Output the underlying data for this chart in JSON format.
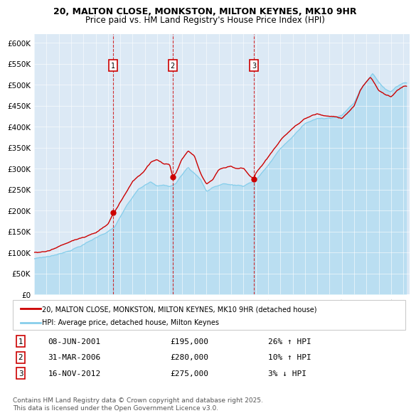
{
  "title1": "20, MALTON CLOSE, MONKSTON, MILTON KEYNES, MK10 9HR",
  "title2": "Price paid vs. HM Land Registry's House Price Index (HPI)",
  "ylabel_ticks": [
    "£0",
    "£50K",
    "£100K",
    "£150K",
    "£200K",
    "£250K",
    "£300K",
    "£350K",
    "£400K",
    "£450K",
    "£500K",
    "£550K",
    "£600K"
  ],
  "ylim": [
    0,
    620000
  ],
  "ytick_vals": [
    0,
    50000,
    100000,
    150000,
    200000,
    250000,
    300000,
    350000,
    400000,
    450000,
    500000,
    550000,
    600000
  ],
  "sale_dates": [
    "2001-06-08",
    "2006-03-31",
    "2012-11-16"
  ],
  "sale_prices": [
    195000,
    280000,
    275000
  ],
  "sale_labels": [
    "1",
    "2",
    "3"
  ],
  "sale_date_strs": [
    "08-JUN-2001",
    "31-MAR-2006",
    "16-NOV-2012"
  ],
  "sale_price_strs": [
    "£195,000",
    "£280,000",
    "£275,000"
  ],
  "sale_hpi_strs": [
    "26% ↑ HPI",
    "10% ↑ HPI",
    "3% ↓ HPI"
  ],
  "hpi_color": "#87CEEB",
  "property_color": "#CC0000",
  "bg_color": "#dce9f5",
  "plot_bg": "#dce9f5",
  "vline_color": "#CC0000",
  "legend_label_property": "20, MALTON CLOSE, MONKSTON, MILTON KEYNES, MK10 9HR (detached house)",
  "legend_label_hpi": "HPI: Average price, detached house, Milton Keynes",
  "footnote": "Contains HM Land Registry data © Crown copyright and database right 2025.\nThis data is licensed under the Open Government Licence v3.0.",
  "x_start_year": 1995,
  "x_end_year": 2025
}
